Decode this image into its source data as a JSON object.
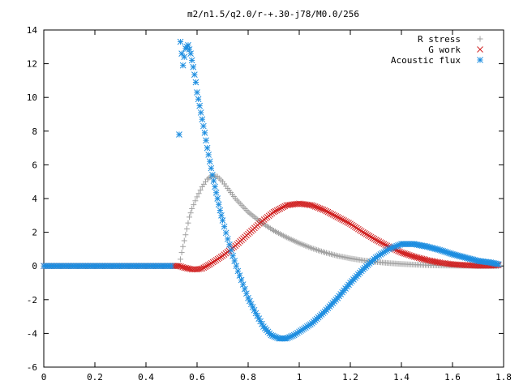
{
  "chart_data": {
    "type": "scatter",
    "title": "m2/n1.5/q2.0/r-+.30-j78/M0.0/256",
    "xlabel": "",
    "ylabel": "",
    "xlim": [
      0,
      1.8
    ],
    "ylim": [
      -6,
      14
    ],
    "x_ticks": [
      0,
      0.2,
      0.4,
      0.6,
      0.8,
      1,
      1.2,
      1.4,
      1.6,
      1.8
    ],
    "x_tick_labels": [
      "0",
      "0.2",
      "0.4",
      "0.6",
      "0.8",
      "1",
      "1.2",
      "1.4",
      "1.6",
      "1.8"
    ],
    "y_ticks": [
      -6,
      -4,
      -2,
      0,
      2,
      4,
      6,
      8,
      10,
      12,
      14
    ],
    "y_tick_labels": [
      "-6",
      "-4",
      "-2",
      "0",
      "2",
      "4",
      "6",
      "8",
      "10",
      "12",
      "14"
    ],
    "grid": false,
    "legend_position": "top-right",
    "series": [
      {
        "name": "R stress",
        "color": "#a0a0a0",
        "marker": "plus",
        "points": [
          [
            0.0,
            0.0
          ],
          [
            0.1,
            0.0
          ],
          [
            0.2,
            0.0
          ],
          [
            0.3,
            0.0
          ],
          [
            0.4,
            0.0
          ],
          [
            0.5,
            0.0
          ],
          [
            0.53,
            0.0
          ],
          [
            0.54,
            0.8
          ],
          [
            0.55,
            1.5
          ],
          [
            0.56,
            2.2
          ],
          [
            0.57,
            2.9
          ],
          [
            0.58,
            3.4
          ],
          [
            0.6,
            4.1
          ],
          [
            0.62,
            4.7
          ],
          [
            0.64,
            5.15
          ],
          [
            0.66,
            5.35
          ],
          [
            0.68,
            5.3
          ],
          [
            0.7,
            5.0
          ],
          [
            0.72,
            4.6
          ],
          [
            0.75,
            4.0
          ],
          [
            0.8,
            3.2
          ],
          [
            0.85,
            2.6
          ],
          [
            0.9,
            2.1
          ],
          [
            0.95,
            1.7
          ],
          [
            1.0,
            1.35
          ],
          [
            1.05,
            1.05
          ],
          [
            1.1,
            0.8
          ],
          [
            1.15,
            0.6
          ],
          [
            1.2,
            0.45
          ],
          [
            1.25,
            0.33
          ],
          [
            1.3,
            0.24
          ],
          [
            1.35,
            0.17
          ],
          [
            1.4,
            0.12
          ],
          [
            1.45,
            0.08
          ],
          [
            1.5,
            0.05
          ],
          [
            1.55,
            0.03
          ],
          [
            1.6,
            0.02
          ],
          [
            1.65,
            0.01
          ],
          [
            1.7,
            0.0
          ],
          [
            1.75,
            0.0
          ],
          [
            1.78,
            0.0
          ]
        ]
      },
      {
        "name": "G work",
        "color": "#d02020",
        "marker": "cross",
        "points": [
          [
            0.0,
            0.0
          ],
          [
            0.1,
            0.0
          ],
          [
            0.2,
            0.0
          ],
          [
            0.3,
            0.0
          ],
          [
            0.4,
            0.0
          ],
          [
            0.5,
            0.0
          ],
          [
            0.53,
            0.0
          ],
          [
            0.55,
            -0.1
          ],
          [
            0.58,
            -0.2
          ],
          [
            0.6,
            -0.2
          ],
          [
            0.62,
            -0.15
          ],
          [
            0.65,
            0.1
          ],
          [
            0.7,
            0.6
          ],
          [
            0.75,
            1.2
          ],
          [
            0.8,
            1.9
          ],
          [
            0.85,
            2.6
          ],
          [
            0.9,
            3.2
          ],
          [
            0.95,
            3.6
          ],
          [
            1.0,
            3.7
          ],
          [
            1.05,
            3.6
          ],
          [
            1.1,
            3.3
          ],
          [
            1.15,
            2.9
          ],
          [
            1.2,
            2.5
          ],
          [
            1.25,
            2.0
          ],
          [
            1.3,
            1.55
          ],
          [
            1.35,
            1.15
          ],
          [
            1.4,
            0.8
          ],
          [
            1.45,
            0.55
          ],
          [
            1.5,
            0.35
          ],
          [
            1.55,
            0.2
          ],
          [
            1.6,
            0.1
          ],
          [
            1.65,
            0.05
          ],
          [
            1.7,
            0.02
          ],
          [
            1.75,
            0.02
          ],
          [
            1.78,
            0.05
          ]
        ]
      },
      {
        "name": "Acoustic flux",
        "color": "#1e8ee0",
        "marker": "star",
        "points": [
          [
            0.0,
            0.0
          ],
          [
            0.1,
            0.0
          ],
          [
            0.2,
            0.0
          ],
          [
            0.3,
            0.0
          ],
          [
            0.4,
            0.0
          ],
          [
            0.5,
            0.0
          ],
          [
            0.53,
            7.8
          ],
          [
            0.535,
            13.3
          ],
          [
            0.545,
            11.9
          ],
          [
            0.555,
            12.9
          ],
          [
            0.565,
            13.1
          ],
          [
            0.575,
            12.6
          ],
          [
            0.585,
            11.8
          ],
          [
            0.595,
            10.9
          ],
          [
            0.6,
            10.3
          ],
          [
            0.61,
            9.5
          ],
          [
            0.62,
            8.7
          ],
          [
            0.63,
            7.9
          ],
          [
            0.64,
            7.0
          ],
          [
            0.65,
            6.2
          ],
          [
            0.66,
            5.4
          ],
          [
            0.67,
            4.7
          ],
          [
            0.68,
            4.0
          ],
          [
            0.69,
            3.3
          ],
          [
            0.7,
            2.7
          ],
          [
            0.72,
            1.6
          ],
          [
            0.74,
            0.6
          ],
          [
            0.76,
            -0.3
          ],
          [
            0.78,
            -1.1
          ],
          [
            0.8,
            -1.9
          ],
          [
            0.83,
            -2.8
          ],
          [
            0.86,
            -3.6
          ],
          [
            0.89,
            -4.1
          ],
          [
            0.92,
            -4.3
          ],
          [
            0.95,
            -4.3
          ],
          [
            0.98,
            -4.1
          ],
          [
            1.0,
            -3.9
          ],
          [
            1.05,
            -3.4
          ],
          [
            1.1,
            -2.7
          ],
          [
            1.15,
            -1.9
          ],
          [
            1.2,
            -1.0
          ],
          [
            1.25,
            -0.2
          ],
          [
            1.3,
            0.5
          ],
          [
            1.35,
            1.0
          ],
          [
            1.4,
            1.3
          ],
          [
            1.45,
            1.3
          ],
          [
            1.5,
            1.15
          ],
          [
            1.55,
            0.95
          ],
          [
            1.6,
            0.7
          ],
          [
            1.65,
            0.5
          ],
          [
            1.7,
            0.3
          ],
          [
            1.75,
            0.2
          ],
          [
            1.78,
            0.1
          ]
        ]
      }
    ]
  }
}
